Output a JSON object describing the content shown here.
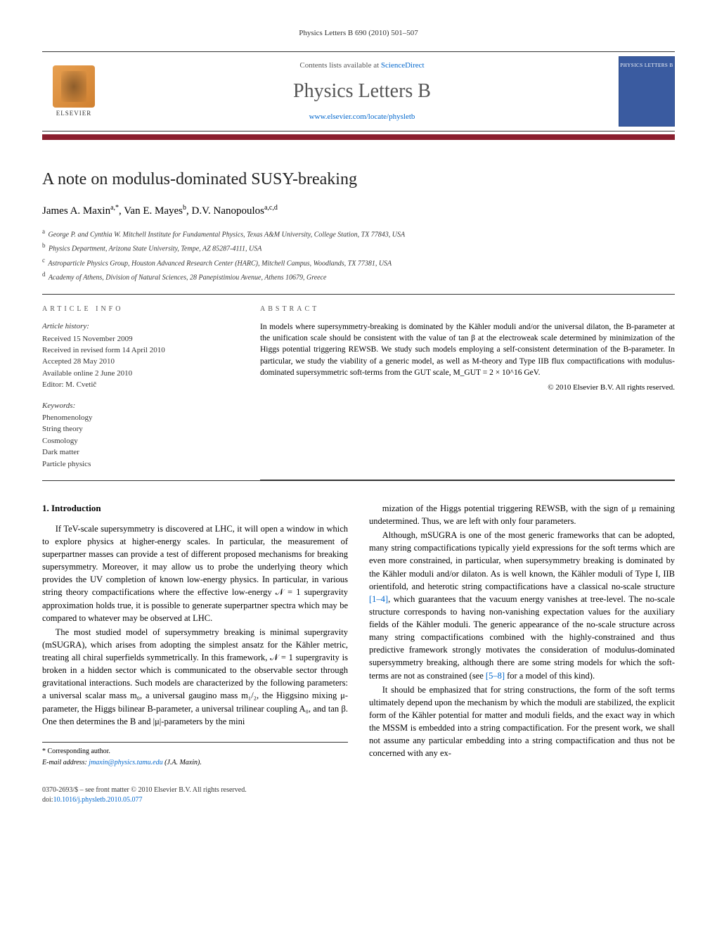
{
  "journal_header": "Physics Letters B 690 (2010) 501–507",
  "banner": {
    "contents_prefix": "Contents lists available at ",
    "contents_link": "ScienceDirect",
    "journal_name": "Physics Letters B",
    "locate_url": "www.elsevier.com/locate/physletb",
    "publisher_label": "ELSEVIER",
    "thumb_label": "PHYSICS LETTERS B"
  },
  "accent_color": "#8a1f2e",
  "title": "A note on modulus-dominated SUSY-breaking",
  "authors_html": "James A. Maxin",
  "authors": [
    {
      "name": "James A. Maxin",
      "affs": "a,*"
    },
    {
      "name": "Van E. Mayes",
      "affs": "b"
    },
    {
      "name": "D.V. Nanopoulos",
      "affs": "a,c,d"
    }
  ],
  "affiliations": [
    {
      "key": "a",
      "text": "George P. and Cynthia W. Mitchell Institute for Fundamental Physics, Texas A&M University, College Station, TX 77843, USA"
    },
    {
      "key": "b",
      "text": "Physics Department, Arizona State University, Tempe, AZ 85287-4111, USA"
    },
    {
      "key": "c",
      "text": "Astroparticle Physics Group, Houston Advanced Research Center (HARC), Mitchell Campus, Woodlands, TX 77381, USA"
    },
    {
      "key": "d",
      "text": "Academy of Athens, Division of Natural Sciences, 28 Panepistimiou Avenue, Athens 10679, Greece"
    }
  ],
  "article_info_label": "ARTICLE INFO",
  "abstract_label": "ABSTRACT",
  "history": {
    "label": "Article history:",
    "lines": [
      "Received 15 November 2009",
      "Received in revised form 14 April 2010",
      "Accepted 28 May 2010",
      "Available online 2 June 2010",
      "Editor: M. Cvetič"
    ]
  },
  "keywords": {
    "label": "Keywords:",
    "items": [
      "Phenomenology",
      "String theory",
      "Cosmology",
      "Dark matter",
      "Particle physics"
    ]
  },
  "abstract": "In models where supersymmetry-breaking is dominated by the Kähler moduli and/or the universal dilaton, the B-parameter at the unification scale should be consistent with the value of tan β at the electroweak scale determined by minimization of the Higgs potential triggering REWSB. We study such models employing a self-consistent determination of the B-parameter. In particular, we study the viability of a generic model, as well as M-theory and Type IIB flux compactifications with modulus-dominated supersymmetric soft-terms from the GUT scale, M_GUT = 2 × 10^16 GeV.",
  "abstract_copyright": "© 2010 Elsevier B.V. All rights reserved.",
  "section_heading": "1. Introduction",
  "paragraphs": [
    "If TeV-scale supersymmetry is discovered at LHC, it will open a window in which to explore physics at higher-energy scales. In particular, the measurement of superpartner masses can provide a test of different proposed mechanisms for breaking supersymmetry. Moreover, it may allow us to probe the underlying theory which provides the UV completion of known low-energy physics. In particular, in various string theory compactifications where the effective low-energy 𝒩 = 1 supergravity approximation holds true, it is possible to generate superpartner spectra which may be compared to whatever may be observed at LHC.",
    "The most studied model of supersymmetry breaking is minimal supergravity (mSUGRA), which arises from adopting the simplest ansatz for the Kähler metric, treating all chiral superfields symmetrically. In this framework, 𝒩 = 1 supergravity is broken in a hidden sector which is communicated to the observable sector through gravitational interactions. Such models are characterized by the following parameters: a universal scalar mass m₀, a universal gaugino mass m₁/₂, the Higgsino mixing μ-parameter, the Higgs bilinear B-parameter, a universal trilinear coupling A₀, and tan β. One then determines the B and |μ|-parameters by the mini",
    "mization of the Higgs potential triggering REWSB, with the sign of μ remaining undetermined. Thus, we are left with only four parameters.",
    "Although, mSUGRA is one of the most generic frameworks that can be adopted, many string compactifications typically yield expressions for the soft terms which are even more constrained, in particular, when supersymmetry breaking is dominated by the Kähler moduli and/or dilaton. As is well known, the Kähler moduli of Type I, IIB orientifold, and heterotic string compactifications have a classical no-scale structure [1–4], which guarantees that the vacuum energy vanishes at tree-level. The no-scale structure corresponds to having non-vanishing expectation values for the auxiliary fields of the Kähler moduli. The generic appearance of the no-scale structure across many string compactifications combined with the highly-constrained and thus predictive framework strongly motivates the consideration of modulus-dominated supersymmetry breaking, although there are some string models for which the soft-terms are not as constrained (see [5–8] for a model of this kind).",
    "It should be emphasized that for string constructions, the form of the soft terms ultimately depend upon the mechanism by which the moduli are stabilized, the explicit form of the Kähler potential for matter and moduli fields, and the exact way in which the MSSM is embedded into a string compactification. For the present work, we shall not assume any particular embedding into a string compactification and thus not be concerned with any ex-"
  ],
  "ref_links": {
    "r1": "[1–4]",
    "r2": "[5–8]"
  },
  "footnotes": {
    "corr": "* Corresponding author.",
    "email_label": "E-mail address:",
    "email": "jmaxin@physics.tamu.edu",
    "email_name": "(J.A. Maxin)."
  },
  "footer": {
    "issn_line": "0370-2693/$ – see front matter © 2010 Elsevier B.V. All rights reserved.",
    "doi_label": "doi:",
    "doi": "10.1016/j.physletb.2010.05.077"
  }
}
